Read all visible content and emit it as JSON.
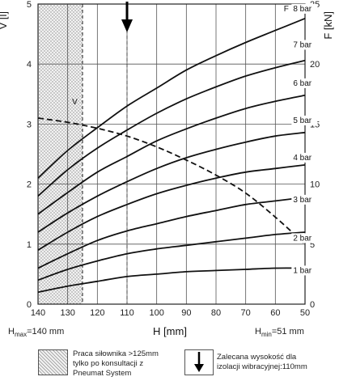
{
  "chart_data": {
    "type": "line",
    "x_axis": {
      "label": "H [mm]",
      "range": [
        140,
        50
      ],
      "ticks": [
        140,
        130,
        120,
        110,
        100,
        90,
        80,
        70,
        60,
        50
      ]
    },
    "y_left": {
      "label": "V [l]",
      "range": [
        0,
        5
      ],
      "ticks": [
        0,
        1,
        2,
        3,
        4,
        5
      ]
    },
    "y_right": {
      "label": "F [kN]",
      "range": [
        0,
        25
      ],
      "ticks": [
        0,
        5,
        10,
        15,
        20,
        25
      ]
    },
    "grid": true,
    "force_series": [
      {
        "name": "1 bar",
        "axis": "right",
        "x": [
          140,
          130,
          120,
          110,
          100,
          90,
          80,
          70,
          60,
          50
        ],
        "values": [
          1.0,
          1.5,
          1.9,
          2.3,
          2.5,
          2.7,
          2.8,
          2.9,
          3.0,
          3.0
        ]
      },
      {
        "name": "2 bar",
        "axis": "right",
        "x": [
          140,
          130,
          120,
          110,
          100,
          90,
          80,
          70,
          60,
          50
        ],
        "values": [
          2.0,
          2.9,
          3.6,
          4.2,
          4.6,
          4.9,
          5.2,
          5.5,
          5.8,
          6.0
        ]
      },
      {
        "name": "3 bar",
        "axis": "right",
        "x": [
          140,
          130,
          120,
          110,
          100,
          90,
          80,
          70,
          60,
          50
        ],
        "values": [
          3.0,
          4.2,
          5.3,
          6.1,
          6.7,
          7.3,
          7.8,
          8.3,
          8.6,
          8.9
        ]
      },
      {
        "name": "4 bar",
        "axis": "right",
        "x": [
          140,
          130,
          120,
          110,
          100,
          90,
          80,
          70,
          60,
          50
        ],
        "values": [
          4.5,
          6.0,
          7.3,
          8.3,
          9.2,
          9.9,
          10.5,
          11.0,
          11.3,
          11.6
        ]
      },
      {
        "name": "5 bar",
        "axis": "right",
        "x": [
          140,
          130,
          120,
          110,
          100,
          90,
          80,
          70,
          60,
          50
        ],
        "values": [
          6.0,
          7.6,
          9.0,
          10.2,
          11.3,
          12.2,
          12.9,
          13.5,
          14.0,
          14.3
        ]
      },
      {
        "name": "6 bar",
        "axis": "right",
        "x": [
          140,
          130,
          120,
          110,
          100,
          90,
          80,
          70,
          60,
          50
        ],
        "values": [
          7.5,
          9.3,
          11.0,
          12.3,
          13.6,
          14.6,
          15.5,
          16.3,
          16.9,
          17.4
        ]
      },
      {
        "name": "7 bar",
        "axis": "right",
        "x": [
          140,
          130,
          120,
          110,
          100,
          90,
          80,
          70,
          60,
          50
        ],
        "values": [
          9.0,
          11.2,
          13.0,
          14.5,
          15.9,
          17.1,
          18.1,
          19.0,
          19.7,
          20.3
        ]
      },
      {
        "name": "8 bar",
        "axis": "right",
        "x": [
          140,
          130,
          120,
          110,
          100,
          90,
          80,
          70,
          60,
          50
        ],
        "values": [
          10.5,
          12.8,
          14.7,
          16.5,
          18.0,
          19.5,
          20.7,
          21.8,
          22.8,
          23.8
        ]
      }
    ],
    "volume_series": {
      "name": "V",
      "axis": "left",
      "style": "dashed",
      "x": [
        140,
        130,
        120,
        110,
        100,
        90,
        80,
        70,
        60,
        50
      ],
      "values": [
        3.1,
        3.03,
        2.93,
        2.8,
        2.62,
        2.4,
        2.15,
        1.85,
        1.45,
        1.0
      ]
    },
    "curve_labels": [
      {
        "text": "1 bar",
        "x": 54,
        "y": 2.6
      },
      {
        "text": "2 bar",
        "x": 54,
        "y": 5.3
      },
      {
        "text": "3 bar",
        "x": 54,
        "y": 8.5
      },
      {
        "text": "4 bar",
        "x": 54,
        "y": 12.0
      },
      {
        "text": "5 bar",
        "x": 54,
        "y": 15.1
      },
      {
        "text": "6 bar",
        "x": 54,
        "y": 18.2
      },
      {
        "text": "7 bar",
        "x": 54,
        "y": 21.4
      },
      {
        "text": "8 bar",
        "x": 54,
        "y": 24.4
      }
    ],
    "f_marker": "F",
    "v_marker": "V",
    "hatched_region": [
      140,
      125
    ],
    "recommended_height": 110
  },
  "h_max_label": {
    "main": "H",
    "sub": "max",
    "rest": "=140 mm"
  },
  "h_min_label": {
    "main": "H",
    "sub": "min",
    "rest": "=51 mm"
  },
  "legend": {
    "hatch_text": [
      "Praca siłownika >125mm",
      "tylko po konsultacji z",
      "Pneumat System"
    ],
    "arrow_text": [
      "Zalecana wysokość dla",
      "izolacji wibracyjnej:110mm"
    ]
  }
}
